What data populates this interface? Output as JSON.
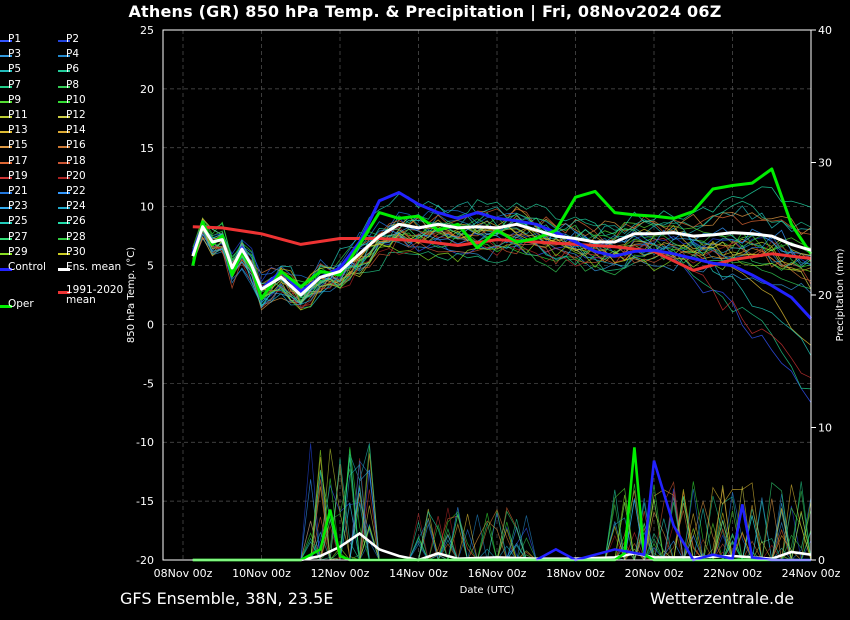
{
  "title": "Athens  (GR)  850 hPa Temp. & Precipitation | Fri, 08Nov2024 06Z",
  "footer": {
    "left": "GFS Ensemble, 38N, 23.5E",
    "right": "Wetterzentrale.de"
  },
  "colors": {
    "background": "#000000",
    "control": "#2222ff",
    "ens_mean": "#ffffff",
    "oper": "#00ee00",
    "climate_mean": "#ee3333",
    "grid": "#555555"
  },
  "legend": [
    {
      "label": "P1",
      "color": "#3355ff"
    },
    {
      "label": "P2",
      "color": "#2244dd"
    },
    {
      "label": "P3",
      "color": "#3399dd"
    },
    {
      "label": "P4",
      "color": "#2288cc"
    },
    {
      "label": "P5",
      "color": "#22bbbb"
    },
    {
      "label": "P6",
      "color": "#22cc99"
    },
    {
      "label": "P7",
      "color": "#22cc88"
    },
    {
      "label": "P8",
      "color": "#33cc55"
    },
    {
      "label": "P9",
      "color": "#55dd33"
    },
    {
      "label": "P10",
      "color": "#33dd33"
    },
    {
      "label": "P11",
      "color": "#bbcc33"
    },
    {
      "label": "P12",
      "color": "#cccc44"
    },
    {
      "label": "P13",
      "color": "#ddbb33"
    },
    {
      "label": "P14",
      "color": "#ddaa33"
    },
    {
      "label": "P15",
      "color": "#dd9944"
    },
    {
      "label": "P16",
      "color": "#cc7733"
    },
    {
      "label": "P17",
      "color": "#dd6633"
    },
    {
      "label": "P18",
      "color": "#cc5533"
    },
    {
      "label": "P19",
      "color": "#cc3333"
    },
    {
      "label": "P20",
      "color": "#aa2222"
    },
    {
      "label": "P21",
      "color": "#2277dd"
    },
    {
      "label": "P22",
      "color": "#3399ff"
    },
    {
      "label": "P23",
      "color": "#33aaee"
    },
    {
      "label": "P24",
      "color": "#22aacc"
    },
    {
      "label": "P25",
      "color": "#22ccbb"
    },
    {
      "label": "P26",
      "color": "#22ddaa"
    },
    {
      "label": "P27",
      "color": "#33dd77"
    },
    {
      "label": "P28",
      "color": "#33cc44"
    },
    {
      "label": "P29",
      "color": "#88dd22"
    },
    {
      "label": "P30",
      "color": "#cccc22"
    },
    {
      "label": "Control",
      "color": "#2222ff"
    },
    {
      "label": "Ens. mean",
      "color": "#ffffff"
    },
    {
      "label": "Oper",
      "color": "#00ee00"
    },
    {
      "label": "1991-2020\nmean",
      "color": "#ee3333"
    }
  ],
  "chart_data": {
    "type": "line",
    "title": "Athens  (GR)  850 hPa Temp. & Precipitation | Fri, 08Nov2024 06Z",
    "xlabel": "Date (UTC)",
    "ylabel": "850 hPa Temp. (°C)",
    "y2label": "Precipitation (mm)",
    "x_ticks": [
      "08Nov 00z",
      "10Nov 00z",
      "12Nov 00z",
      "14Nov 00z",
      "16Nov 00z",
      "18Nov 00z",
      "20Nov 00z",
      "22Nov 00z",
      "24Nov 00z"
    ],
    "x_range_days": [
      0,
      16
    ],
    "ylim": [
      -20,
      25
    ],
    "y_ticks": [
      -20,
      -15,
      -10,
      -5,
      0,
      5,
      10,
      15,
      20,
      25
    ],
    "y2lim": [
      0,
      40
    ],
    "y2_ticks": [
      0,
      10,
      20,
      30,
      40
    ],
    "grid": true,
    "temperature_series": [
      {
        "name": "Control",
        "color": "#2222ff",
        "t": [
          0.25,
          0.5,
          0.75,
          1,
          1.25,
          1.5,
          1.75,
          2,
          2.5,
          3,
          3.5,
          4,
          4.5,
          5,
          5.5,
          6,
          6.5,
          7,
          7.5,
          8,
          8.5,
          9,
          9.5,
          10,
          10.5,
          11,
          11.5,
          12,
          12.5,
          13,
          13.5,
          14,
          14.5,
          15,
          15.5,
          16
        ],
        "v": [
          6,
          8.5,
          7,
          7.3,
          4.5,
          6.5,
          5,
          3,
          4.5,
          2.8,
          4,
          4.8,
          7,
          10.5,
          11.2,
          10.2,
          9.5,
          9,
          9.5,
          9,
          8.8,
          8.5,
          7.8,
          7,
          6.2,
          5.8,
          6.2,
          6.3,
          6,
          5.6,
          5.2,
          5,
          4.2,
          3.3,
          2.3,
          0.5
        ]
      },
      {
        "name": "Ens. mean",
        "color": "#ffffff",
        "t": [
          0.25,
          0.5,
          0.75,
          1,
          1.25,
          1.5,
          1.75,
          2,
          2.5,
          3,
          3.5,
          4,
          4.5,
          5,
          5.5,
          6,
          6.5,
          7,
          7.5,
          8,
          8.5,
          9,
          9.5,
          10,
          10.5,
          11,
          11.5,
          12,
          12.5,
          13,
          13.5,
          14,
          14.5,
          15,
          15.5,
          16
        ],
        "v": [
          5.8,
          8.3,
          7,
          7.2,
          4.8,
          6.4,
          5,
          3,
          4,
          2.5,
          4,
          4.5,
          6,
          7.5,
          8.5,
          8.2,
          8.5,
          8.2,
          8.3,
          8.2,
          8.5,
          8,
          7.5,
          7.3,
          7,
          7,
          7.7,
          7.7,
          7.8,
          7.5,
          7.6,
          7.8,
          7.7,
          7.5,
          6.8,
          6.3
        ]
      },
      {
        "name": "Oper",
        "color": "#00ee00",
        "t": [
          0.25,
          0.5,
          0.75,
          1,
          1.25,
          1.5,
          1.75,
          2,
          2.5,
          3,
          3.5,
          4,
          4.5,
          5,
          5.5,
          6,
          6.5,
          7,
          7.5,
          8,
          8.5,
          9,
          9.5,
          10,
          10.5,
          11,
          11.5,
          12,
          12.5,
          13,
          13.5,
          14,
          14.5,
          15,
          15.5,
          16
        ],
        "v": [
          5,
          8.7,
          6.8,
          7.5,
          4.2,
          6.2,
          4.8,
          2.2,
          4.5,
          3.2,
          4.5,
          4.2,
          6.8,
          9.5,
          9,
          9.2,
          8,
          8.5,
          6.5,
          8,
          7,
          7.3,
          8,
          10.8,
          11.3,
          9.5,
          9.3,
          9.2,
          9,
          9.6,
          11.5,
          11.8,
          12,
          13.2,
          8.5,
          6
        ]
      },
      {
        "name": "1991-2020 mean",
        "color": "#ee3333",
        "t": [
          0.25,
          1,
          2,
          3,
          4,
          5,
          6,
          7,
          8,
          9,
          10,
          11,
          12,
          13,
          14,
          15,
          16
        ],
        "v": [
          8.3,
          8.2,
          7.7,
          6.8,
          7.3,
          7.3,
          7.1,
          6.7,
          7.2,
          7,
          6.8,
          6.6,
          6.2,
          4.6,
          5.5,
          6.0,
          5.6
        ]
      }
    ],
    "precipitation_series": [
      {
        "name": "Ens. mean",
        "color": "#ffffff",
        "t": [
          0.25,
          1,
          2,
          3,
          3.5,
          4,
          4.5,
          5,
          5.5,
          6,
          6.5,
          7,
          8,
          9,
          10,
          11,
          11.5,
          12,
          13,
          14,
          15,
          15.5,
          16
        ],
        "v": [
          0,
          0,
          0,
          0,
          0.3,
          1,
          2,
          0.8,
          0.3,
          0,
          0.5,
          0.1,
          0.2,
          0.1,
          0.1,
          0.2,
          0.5,
          0.2,
          0.2,
          0.3,
          0.1,
          0.6,
          0.4
        ]
      },
      {
        "name": "Oper",
        "color": "#00ee00",
        "t": [
          0.25,
          1,
          2,
          3,
          3.5,
          3.75,
          4,
          4.25,
          4.5,
          5,
          6,
          8,
          10,
          11,
          11.25,
          11.5,
          11.75,
          12,
          13,
          14,
          15,
          16
        ],
        "v": [
          0,
          0,
          0,
          0,
          0.8,
          3.8,
          0.3,
          0,
          0,
          0,
          0,
          0,
          0,
          0,
          0.5,
          8.5,
          0.4,
          0,
          0,
          0,
          0,
          0
        ]
      },
      {
        "name": "Control",
        "color": "#2222ff",
        "t": [
          9,
          9.5,
          10,
          11,
          11.75,
          12,
          12.5,
          13,
          13.5,
          14,
          14.25,
          14.5,
          15,
          16
        ],
        "v": [
          0,
          0.8,
          0,
          0.8,
          0.4,
          7.5,
          2.6,
          0,
          0.4,
          0.1,
          4.2,
          0.2,
          0,
          0
        ]
      }
    ],
    "legend_placement": "left"
  }
}
